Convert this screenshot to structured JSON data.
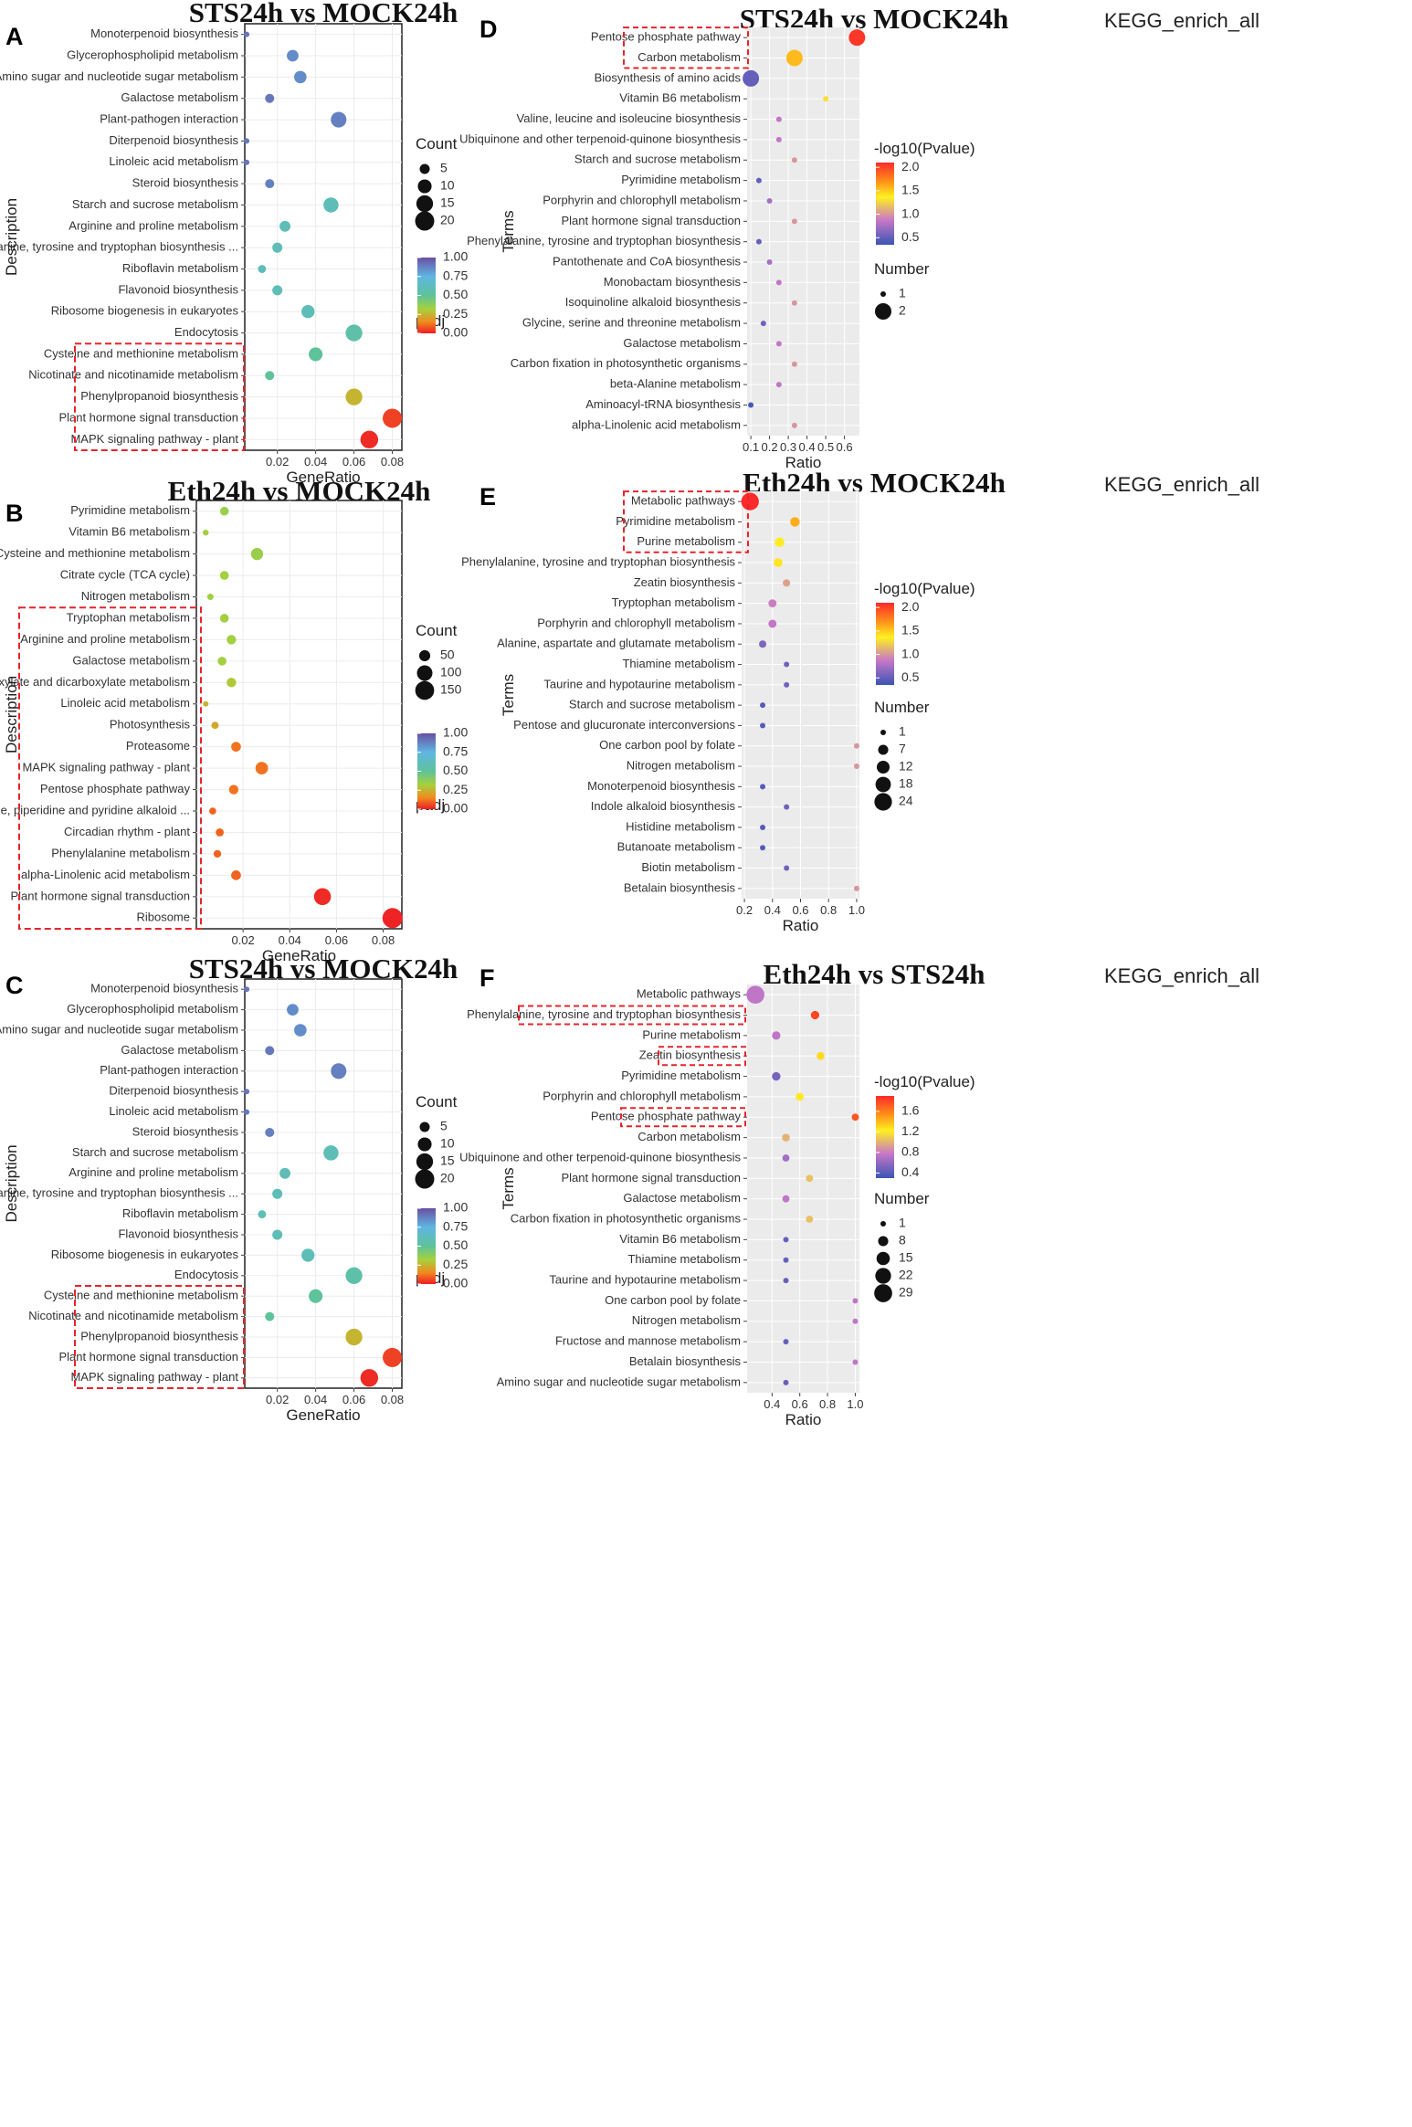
{
  "chart_data": [
    {
      "panel": "A",
      "type": "scatter",
      "style": "gg",
      "title": "STS24h vs MOCK24h",
      "subtitle": "",
      "xlabel": "GeneRatio",
      "ylabel": "Description",
      "xlim": [
        0.003,
        0.085
      ],
      "xticks": [
        0.02,
        0.04,
        0.06,
        0.08
      ],
      "xtick_labels": [
        "0.02",
        "0.04",
        "0.06",
        "0.08"
      ],
      "size_legend": {
        "title": "Count",
        "values": [
          5,
          10,
          15,
          20
        ]
      },
      "color_legend": {
        "title": "padj",
        "min": 0,
        "max": 1,
        "labels": [
          "1.00",
          "0.75",
          "0.50",
          "0.25",
          "0.00"
        ],
        "scale": "padj"
      },
      "size_domain": [
        1,
        22
      ],
      "radius_range": [
        3,
        11
      ],
      "terms": [
        "Monoterpenoid biosynthesis",
        "Glycerophospholipid metabolism",
        "Amino sugar and nucleotide sugar metabolism",
        "Galactose metabolism",
        "Plant-pathogen interaction",
        "Diterpenoid biosynthesis",
        "Linoleic acid metabolism",
        "Steroid biosynthesis",
        "Starch and sucrose metabolism",
        "Arginine and proline metabolism",
        "Phenylalanine, tyrosine and tryptophan biosynthesis ...",
        "Riboflavin metabolism",
        "Flavonoid biosynthesis",
        "Ribosome biogenesis in eukaryotes",
        "Endocytosis",
        "Cysteine and methionine metabolism",
        "Nicotinate and nicotinamide metabolism",
        "Phenylpropanoid biosynthesis",
        "Plant hormone signal transduction",
        "MAPK signaling pathway - plant"
      ],
      "x": [
        0.004,
        0.028,
        0.032,
        0.016,
        0.052,
        0.004,
        0.004,
        0.016,
        0.048,
        0.024,
        0.02,
        0.012,
        0.02,
        0.036,
        0.06,
        0.04,
        0.016,
        0.06,
        0.08,
        0.068
      ],
      "color": [
        0.9,
        0.85,
        0.85,
        0.9,
        0.88,
        0.9,
        0.9,
        0.88,
        0.6,
        0.6,
        0.6,
        0.6,
        0.6,
        0.6,
        0.55,
        0.5,
        0.5,
        0.25,
        0.05,
        0.02
      ],
      "size": [
        1,
        7,
        8,
        4,
        13,
        1,
        1,
        4,
        12,
        6,
        5,
        3,
        5,
        9,
        15,
        10,
        4,
        15,
        20,
        17
      ],
      "highlight": [
        15,
        19
      ]
    },
    {
      "panel": "B",
      "type": "scatter",
      "style": "gg",
      "title": "Eth24h vs MOCK24h",
      "subtitle": "",
      "xlabel": "GeneRatio",
      "ylabel": "Description",
      "xlim": [
        0.0,
        0.088
      ],
      "xticks": [
        0.02,
        0.04,
        0.06,
        0.08
      ],
      "xtick_labels": [
        "0.02",
        "0.04",
        "0.06",
        "0.08"
      ],
      "size_legend": {
        "title": "Count",
        "values": [
          50,
          100,
          150
        ]
      },
      "color_legend": {
        "title": "padj",
        "min": 0,
        "max": 1,
        "labels": [
          "1.00",
          "0.75",
          "0.50",
          "0.25",
          "0.00"
        ],
        "scale": "padj"
      },
      "size_domain": [
        10,
        170
      ],
      "radius_range": [
        3,
        11
      ],
      "terms": [
        "Pyrimidine metabolism",
        "Vitamin B6 metabolism",
        "Cysteine and methionine metabolism",
        "Citrate cycle (TCA cycle)",
        "Nitrogen metabolism",
        "Tryptophan metabolism",
        "Arginine and proline metabolism",
        "Galactose metabolism",
        "Glyoxylate and dicarboxylate metabolism",
        "Linoleic acid metabolism",
        "Photosynthesis",
        "Proteasome",
        "MAPK signaling pathway - plant",
        "Pentose phosphate pathway",
        "Tropane, piperidine and pyridine alkaloid ...",
        "Circadian rhythm - plant",
        "Phenylalanine metabolism",
        "alpha-Linolenic acid metabolism",
        "Plant hormone signal transduction",
        "Ribosome"
      ],
      "x": [
        0.012,
        0.004,
        0.026,
        0.012,
        0.006,
        0.012,
        0.015,
        0.011,
        0.015,
        0.004,
        0.008,
        0.017,
        0.028,
        0.016,
        0.007,
        0.01,
        0.009,
        0.017,
        0.054,
        0.084
      ],
      "color": [
        0.35,
        0.33,
        0.35,
        0.33,
        0.33,
        0.33,
        0.33,
        0.33,
        0.3,
        0.25,
        0.22,
        0.12,
        0.12,
        0.12,
        0.1,
        0.1,
        0.1,
        0.1,
        0.02,
        0.01
      ],
      "size": [
        30,
        12,
        60,
        30,
        15,
        30,
        35,
        30,
        35,
        10,
        20,
        38,
        65,
        35,
        18,
        25,
        22,
        38,
        120,
        170
      ],
      "highlight": [
        5,
        19
      ]
    },
    {
      "panel": "C",
      "type": "scatter",
      "style": "gg",
      "title": "STS24h vs MOCK24h",
      "subtitle": "",
      "xlabel": "GeneRatio",
      "ylabel": "Description",
      "xlim": [
        0.003,
        0.085
      ],
      "xticks": [
        0.02,
        0.04,
        0.06,
        0.08
      ],
      "xtick_labels": [
        "0.02",
        "0.04",
        "0.06",
        "0.08"
      ],
      "size_legend": {
        "title": "Count",
        "values": [
          5,
          10,
          15,
          20
        ]
      },
      "color_legend": {
        "title": "padj",
        "min": 0,
        "max": 1,
        "labels": [
          "1.00",
          "0.75",
          "0.50",
          "0.25",
          "0.00"
        ],
        "scale": "padj"
      },
      "size_domain": [
        1,
        22
      ],
      "radius_range": [
        3,
        11
      ],
      "terms": [
        "Monoterpenoid biosynthesis",
        "Glycerophospholipid metabolism",
        "Amino sugar and nucleotide sugar metabolism",
        "Galactose metabolism",
        "Plant-pathogen interaction",
        "Diterpenoid biosynthesis",
        "Linoleic acid metabolism",
        "Steroid biosynthesis",
        "Starch and sucrose metabolism",
        "Arginine and proline metabolism",
        "Phenylalanine, tyrosine and tryptophan biosynthesis ...",
        "Riboflavin metabolism",
        "Flavonoid biosynthesis",
        "Ribosome biogenesis in eukaryotes",
        "Endocytosis",
        "Cysteine and methionine metabolism",
        "Nicotinate and nicotinamide metabolism",
        "Phenylpropanoid biosynthesis",
        "Plant hormone signal transduction",
        "MAPK signaling pathway - plant"
      ],
      "x": [
        0.004,
        0.028,
        0.032,
        0.016,
        0.052,
        0.004,
        0.004,
        0.016,
        0.048,
        0.024,
        0.02,
        0.012,
        0.02,
        0.036,
        0.06,
        0.04,
        0.016,
        0.06,
        0.08,
        0.068
      ],
      "color": [
        0.9,
        0.85,
        0.85,
        0.9,
        0.88,
        0.9,
        0.9,
        0.88,
        0.6,
        0.6,
        0.6,
        0.6,
        0.6,
        0.6,
        0.55,
        0.5,
        0.5,
        0.25,
        0.05,
        0.02
      ],
      "size": [
        1,
        7,
        8,
        4,
        13,
        1,
        1,
        4,
        12,
        6,
        5,
        3,
        5,
        9,
        15,
        10,
        4,
        15,
        20,
        17
      ],
      "highlight": [
        15,
        19
      ]
    },
    {
      "panel": "D",
      "type": "scatter",
      "style": "grey",
      "title": "STS24h vs MOCK24h",
      "subtitle": "KEGG_enrich_all",
      "xlabel": "Ratio",
      "ylabel": "Terms",
      "xlim": [
        0.08,
        0.68
      ],
      "xticks": [
        0.1,
        0.2,
        0.3,
        0.4,
        0.5,
        0.6
      ],
      "xtick_labels": [
        "0.1",
        "0.2",
        "0.3",
        "0.4",
        "0.5",
        "0.6"
      ],
      "size_legend": {
        "title": "Number",
        "values": [
          1,
          2
        ]
      },
      "color_legend": {
        "title": "-log10(Pvalue)",
        "min": 0.35,
        "max": 2.1,
        "labels": [
          "2.0",
          "1.5",
          "1.0",
          "0.5"
        ],
        "label_values": [
          2.0,
          1.5,
          1.0,
          0.5
        ],
        "scale": "pval"
      },
      "size_domain": [
        1,
        2
      ],
      "radius_range": [
        3,
        9
      ],
      "terms": [
        "Pentose phosphate pathway",
        "Carbon metabolism",
        "Biosynthesis of amino acids",
        "Vitamin B6 metabolism",
        "Valine, leucine and isoleucine biosynthesis",
        "Ubiquinone and other terpenoid-quinone biosynthesis",
        "Starch and sucrose metabolism",
        "Pyrimidine metabolism",
        "Porphyrin and chlorophyll metabolism",
        "Plant hormone signal transduction",
        "Phenylalanine, tyrosine and tryptophan biosynthesis",
        "Pantothenate and CoA biosynthesis",
        "Monobactam biosynthesis",
        "Isoquinoline alkaloid biosynthesis",
        "Glycine, serine and threonine metabolism",
        "Galactose metabolism",
        "Carbon fixation in photosynthetic organisms",
        "beta-Alanine metabolism",
        "Aminoacyl-tRNA biosynthesis",
        "alpha-Linolenic acid metabolism"
      ],
      "x": [
        0.667,
        0.333,
        0.1,
        0.5,
        0.25,
        0.25,
        0.333,
        0.143,
        0.2,
        0.333,
        0.143,
        0.2,
        0.25,
        0.333,
        0.167,
        0.25,
        0.333,
        0.25,
        0.1,
        0.333
      ],
      "color": [
        2.05,
        1.55,
        0.5,
        1.3,
        0.85,
        0.85,
        1.0,
        0.5,
        0.75,
        1.0,
        0.5,
        0.75,
        0.85,
        1.0,
        0.55,
        0.85,
        1.0,
        0.85,
        0.4,
        1.0
      ],
      "size": [
        2,
        2,
        2,
        1,
        1,
        1,
        1,
        1,
        1,
        1,
        1,
        1,
        1,
        1,
        1,
        1,
        1,
        1,
        1,
        1
      ],
      "highlight": [
        0,
        1
      ]
    },
    {
      "panel": "E",
      "type": "scatter",
      "style": "grey",
      "title": "Eth24h vs MOCK24h",
      "subtitle": "KEGG_enrich_all",
      "xlabel": "Ratio",
      "ylabel": "Terms",
      "xlim": [
        0.18,
        1.02
      ],
      "xticks": [
        0.2,
        0.4,
        0.6,
        0.8,
        1.0
      ],
      "xtick_labels": [
        "0.2",
        "0.4",
        "0.6",
        "0.8",
        "1.0"
      ],
      "size_legend": {
        "title": "Number",
        "values": [
          1,
          7,
          12,
          18,
          24
        ]
      },
      "color_legend": {
        "title": "-log10(Pvalue)",
        "min": 0.35,
        "max": 2.1,
        "labels": [
          "2.0",
          "1.5",
          "1.0",
          "0.5"
        ],
        "label_values": [
          2.0,
          1.5,
          1.0,
          0.5
        ],
        "scale": "pval"
      },
      "size_domain": [
        1,
        26
      ],
      "radius_range": [
        3,
        10
      ],
      "terms": [
        "Metabolic pathways",
        "Pyrimidine metabolism",
        "Purine metabolism",
        "Phenylalanine, tyrosine and tryptophan biosynthesis",
        "Zeatin biosynthesis",
        "Tryptophan metabolism",
        "Porphyrin and chlorophyll metabolism",
        "Alanine, aspartate and glutamate metabolism",
        "Thiamine metabolism",
        "Taurine and hypotaurine metabolism",
        "Starch and sucrose metabolism",
        "Pentose and glucuronate interconversions",
        "One carbon pool by folate",
        "Nitrogen metabolism",
        "Monoterpenoid biosynthesis",
        "Indole alkaloid biosynthesis",
        "Histidine metabolism",
        "Butanoate metabolism",
        "Biotin metabolism",
        "Betalain biosynthesis"
      ],
      "x": [
        0.24,
        0.56,
        0.45,
        0.44,
        0.5,
        0.4,
        0.4,
        0.33,
        0.5,
        0.5,
        0.33,
        0.33,
        1.0,
        1.0,
        0.33,
        0.5,
        0.33,
        0.33,
        0.5,
        1.0
      ],
      "color": [
        2.1,
        1.6,
        1.35,
        1.4,
        1.05,
        0.9,
        0.85,
        0.6,
        0.55,
        0.55,
        0.45,
        0.45,
        1.0,
        1.0,
        0.45,
        0.55,
        0.45,
        0.45,
        0.55,
        1.0
      ],
      "size": [
        24,
        6,
        6,
        5,
        3,
        4,
        4,
        3,
        1,
        1,
        1,
        1,
        1,
        1,
        1,
        1,
        1,
        1,
        1,
        1
      ],
      "highlight": [
        0,
        2
      ]
    },
    {
      "panel": "F",
      "type": "scatter",
      "style": "grey",
      "title": "Eth24h vs STS24h",
      "subtitle": "KEGG_enrich_all",
      "xlabel": "Ratio",
      "ylabel": "Terms",
      "xlim": [
        0.22,
        1.03
      ],
      "xticks": [
        0.4,
        0.6,
        0.8,
        1.0
      ],
      "xtick_labels": [
        "0.4",
        "0.6",
        "0.8",
        "1.0"
      ],
      "size_legend": {
        "title": "Number",
        "values": [
          1,
          8,
          15,
          22,
          29
        ]
      },
      "color_legend": {
        "title": "-log10(Pvalue)",
        "min": 0.3,
        "max": 1.9,
        "labels": [
          "1.6",
          "1.2",
          "0.8",
          "0.4"
        ],
        "label_values": [
          1.6,
          1.2,
          0.8,
          0.4
        ],
        "scale": "pval"
      },
      "size_domain": [
        1,
        30
      ],
      "radius_range": [
        3,
        10
      ],
      "terms": [
        "Metabolic pathways",
        "Phenylalanine, tyrosine and tryptophan biosynthesis",
        "Purine metabolism",
        "Zeatin biosynthesis",
        "Pyrimidine metabolism",
        "Porphyrin and chlorophyll metabolism",
        "Pentose phosphate pathway",
        "Carbon metabolism",
        "Ubiquinone and other terpenoid-quinone biosynthesis",
        "Plant hormone signal transduction",
        "Galactose metabolism",
        "Carbon fixation in photosynthetic organisms",
        "Vitamin B6 metabolism",
        "Thiamine metabolism",
        "Taurine and hypotaurine metabolism",
        "One carbon pool by folate",
        "Nitrogen metabolism",
        "Fructose and mannose metabolism",
        "Betalain biosynthesis",
        "Amino sugar and nucleotide sugar metabolism"
      ],
      "x": [
        0.28,
        0.71,
        0.43,
        0.75,
        0.43,
        0.6,
        1.0,
        0.5,
        0.5,
        0.67,
        0.5,
        0.67,
        0.5,
        0.5,
        0.5,
        1.0,
        1.0,
        0.5,
        1.0,
        0.5
      ],
      "color": [
        0.75,
        1.8,
        0.75,
        1.3,
        0.5,
        1.25,
        1.75,
        1.0,
        0.65,
        1.05,
        0.75,
        1.05,
        0.45,
        0.45,
        0.45,
        0.75,
        0.75,
        0.45,
        0.75,
        0.45
      ],
      "size": [
        29,
        5,
        5,
        4,
        5,
        4,
        3,
        4,
        3,
        3,
        3,
        3,
        1,
        1,
        1,
        1,
        1,
        1,
        1,
        1
      ],
      "highlight": [
        1,
        3,
        6
      ]
    }
  ]
}
